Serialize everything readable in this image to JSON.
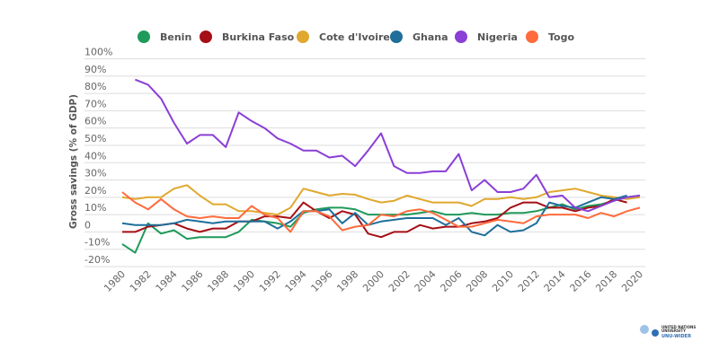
{
  "chart_data": {
    "type": "line",
    "title": "",
    "xlabel": "",
    "ylabel": "Gross savings (% of GDP)",
    "ylim": [
      -20,
      100
    ],
    "xlim": [
      1980,
      2020
    ],
    "grid": true,
    "legend": "top",
    "ytick_labels": [
      "100%",
      "90%",
      "80%",
      "70%",
      "60%",
      "50%",
      "40%",
      "30%",
      "20%",
      "10%",
      "0",
      "-10%",
      "-20%"
    ],
    "yticks": [
      100,
      90,
      80,
      70,
      60,
      50,
      40,
      30,
      20,
      10,
      0,
      -10,
      -20
    ],
    "xticks": [
      1980,
      1982,
      1984,
      1986,
      1988,
      1990,
      1992,
      1994,
      1996,
      1998,
      2000,
      2002,
      2004,
      2006,
      2008,
      2010,
      2012,
      2014,
      2016,
      2018,
      2020
    ],
    "series": [
      {
        "name": "Benin",
        "color": "#1f9a5a",
        "start": 1980,
        "values": [
          -7,
          -12,
          5,
          -1,
          1,
          -4,
          -3,
          -3,
          -3,
          0,
          7,
          6,
          5,
          3,
          11,
          13,
          14,
          14,
          13,
          10,
          10,
          10,
          10,
          11,
          12,
          10,
          10,
          11,
          10,
          10,
          11,
          11,
          12,
          14,
          16,
          13,
          15,
          16,
          18,
          20,
          21
        ]
      },
      {
        "name": "Burkina Faso",
        "color": "#a50f15",
        "start": 1980,
        "values": [
          0,
          0,
          3,
          4,
          5,
          2,
          0,
          2,
          2,
          6,
          6,
          9,
          9,
          8,
          17,
          12,
          8,
          12,
          10,
          -1,
          -3,
          0,
          0,
          4,
          2,
          3,
          3,
          5,
          6,
          8,
          14,
          17,
          17,
          14,
          14,
          12,
          14,
          15,
          19,
          17
        ]
      },
      {
        "name": "Cote d'Ivoire",
        "color": "#e0a82e",
        "start": 1980,
        "values": [
          20,
          19,
          20,
          20,
          25,
          27,
          21,
          16,
          16,
          12,
          12,
          11,
          10,
          14,
          25,
          23,
          21,
          22,
          21.5,
          19,
          17,
          18,
          21,
          19,
          17,
          17,
          17,
          15,
          19,
          19,
          20,
          19,
          20,
          23,
          24,
          25,
          23,
          21,
          20,
          19,
          20
        ]
      },
      {
        "name": "Ghana",
        "color": "#1f6f9a",
        "start": 1980,
        "values": [
          5,
          4,
          4,
          4,
          5,
          7,
          6,
          5,
          6,
          6,
          6,
          6,
          2,
          6,
          12,
          12,
          13,
          5,
          11,
          4,
          6,
          7,
          8,
          8,
          8,
          4,
          8,
          0,
          -2,
          4,
          0,
          1,
          5,
          17,
          15,
          14,
          17,
          20,
          19,
          21
        ]
      },
      {
        "name": "Nigeria",
        "color": "#8a3fd6",
        "start": 1981,
        "values": [
          88,
          85,
          77,
          63,
          51,
          56,
          56,
          49,
          69,
          64,
          60,
          54,
          51,
          47,
          47,
          43,
          44,
          38,
          47,
          57,
          38,
          34,
          34,
          35,
          35,
          45,
          24,
          30,
          23,
          23,
          25,
          33,
          20,
          21,
          14,
          12,
          15,
          18,
          20,
          21
        ]
      },
      {
        "name": "Togo",
        "color": "#ff6b3d",
        "start": 1980,
        "values": [
          23,
          17,
          13,
          19,
          13,
          9,
          8,
          9,
          8,
          8,
          15,
          10,
          8,
          0,
          12,
          12,
          9,
          1,
          3,
          4,
          10,
          9,
          12,
          13,
          11,
          7,
          3,
          3,
          5,
          7,
          6,
          5,
          9,
          10,
          10,
          10,
          8,
          11,
          9,
          12,
          14
        ]
      }
    ]
  },
  "logo": {
    "line1": "UNITED NATIONS",
    "line2": "UNIVERSITY",
    "line3": "UNU-WIDER"
  }
}
